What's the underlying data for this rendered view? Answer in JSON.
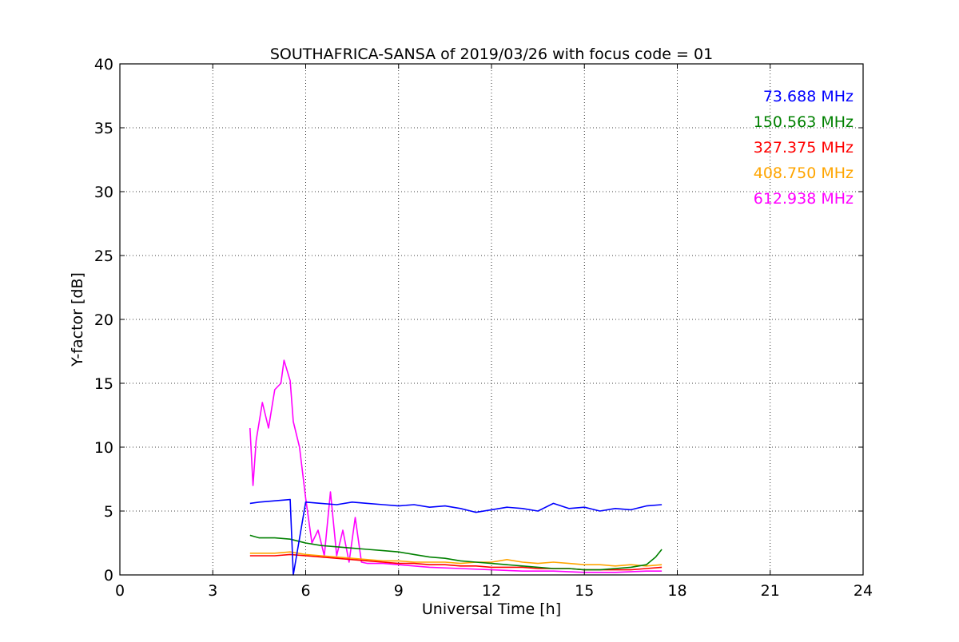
{
  "chart_data": {
    "type": "line",
    "title": "SOUTHAFRICA-SANSA of 2019/03/26 with focus code = 01",
    "xlabel": "Universal Time [h]",
    "ylabel": "Y-factor [dB]",
    "xlim": [
      0,
      24
    ],
    "ylim": [
      0,
      40
    ],
    "xticks": [
      0,
      3,
      6,
      9,
      12,
      15,
      18,
      21,
      24
    ],
    "yticks": [
      0,
      5,
      10,
      15,
      20,
      25,
      30,
      35,
      40
    ],
    "xtick_labels": [
      "0",
      "3",
      "6",
      "9",
      "12",
      "15",
      "18",
      "21",
      "24"
    ],
    "ytick_labels": [
      "0",
      "5",
      "10",
      "15",
      "20",
      "25",
      "30",
      "35",
      "40"
    ],
    "grid": true,
    "legend_position": "top-right",
    "series": [
      {
        "name": "73.688 MHz",
        "color": "#0000ff",
        "x": [
          4.2,
          4.5,
          5.0,
          5.5,
          5.6,
          6.0,
          6.5,
          7.0,
          7.5,
          8.0,
          8.5,
          9.0,
          9.5,
          10.0,
          10.5,
          11.0,
          11.5,
          12.0,
          12.5,
          13.0,
          13.5,
          14.0,
          14.5,
          15.0,
          15.5,
          16.0,
          16.5,
          17.0,
          17.5
        ],
        "y": [
          5.6,
          5.7,
          5.8,
          5.9,
          0.0,
          5.7,
          5.6,
          5.5,
          5.7,
          5.6,
          5.5,
          5.4,
          5.5,
          5.3,
          5.4,
          5.2,
          4.9,
          5.1,
          5.3,
          5.2,
          5.0,
          5.6,
          5.2,
          5.3,
          5.0,
          5.2,
          5.1,
          5.4,
          5.5
        ]
      },
      {
        "name": "150.563 MHz",
        "color": "#008000",
        "x": [
          4.2,
          4.5,
          5.0,
          5.5,
          6.0,
          6.5,
          7.0,
          7.5,
          8.0,
          8.5,
          9.0,
          9.5,
          10.0,
          10.5,
          11.0,
          11.5,
          12.0,
          12.5,
          13.0,
          13.5,
          14.0,
          14.5,
          15.0,
          15.5,
          16.0,
          16.5,
          17.0,
          17.3,
          17.5
        ],
        "y": [
          3.1,
          2.9,
          2.9,
          2.8,
          2.5,
          2.3,
          2.2,
          2.1,
          2.0,
          1.9,
          1.8,
          1.6,
          1.4,
          1.3,
          1.1,
          1.0,
          0.9,
          0.8,
          0.7,
          0.6,
          0.5,
          0.5,
          0.4,
          0.4,
          0.5,
          0.6,
          0.8,
          1.4,
          2.0
        ]
      },
      {
        "name": "327.375 MHz",
        "color": "#ff0000",
        "x": [
          4.2,
          4.5,
          5.0,
          5.5,
          6.0,
          6.5,
          7.0,
          7.5,
          8.0,
          8.5,
          9.0,
          9.5,
          10.0,
          10.5,
          11.0,
          11.5,
          12.0,
          12.5,
          13.0,
          13.5,
          14.0,
          14.5,
          15.0,
          15.5,
          16.0,
          16.5,
          17.0,
          17.5
        ],
        "y": [
          1.5,
          1.5,
          1.5,
          1.6,
          1.5,
          1.4,
          1.3,
          1.2,
          1.1,
          1.0,
          0.9,
          0.9,
          0.8,
          0.8,
          0.7,
          0.7,
          0.6,
          0.6,
          0.6,
          0.5,
          0.5,
          0.5,
          0.4,
          0.4,
          0.4,
          0.4,
          0.5,
          0.6
        ]
      },
      {
        "name": "408.750 MHz",
        "color": "#ffa500",
        "x": [
          4.2,
          4.5,
          5.0,
          5.5,
          6.0,
          6.5,
          7.0,
          7.5,
          8.0,
          8.5,
          9.0,
          9.5,
          10.0,
          10.5,
          11.0,
          11.5,
          12.0,
          12.5,
          13.0,
          13.5,
          14.0,
          14.5,
          15.0,
          15.5,
          16.0,
          16.5,
          17.0,
          17.5
        ],
        "y": [
          1.7,
          1.7,
          1.7,
          1.8,
          1.6,
          1.5,
          1.4,
          1.3,
          1.2,
          1.1,
          1.1,
          1.0,
          1.0,
          1.0,
          0.9,
          1.0,
          1.0,
          1.2,
          1.0,
          0.9,
          1.0,
          0.9,
          0.8,
          0.8,
          0.7,
          0.8,
          0.7,
          0.8
        ]
      },
      {
        "name": "612.938 MHz",
        "color": "#ff00ff",
        "x": [
          4.2,
          4.3,
          4.4,
          4.6,
          4.8,
          5.0,
          5.2,
          5.3,
          5.5,
          5.6,
          5.8,
          6.0,
          6.2,
          6.4,
          6.6,
          6.8,
          7.0,
          7.2,
          7.4,
          7.6,
          7.8,
          8.0,
          8.5,
          9.0,
          9.5,
          10.0,
          11.0,
          12.0,
          13.0,
          14.0,
          15.0,
          16.0,
          17.0,
          17.5
        ],
        "y": [
          11.5,
          7.0,
          10.5,
          13.5,
          11.5,
          14.5,
          15.0,
          16.8,
          15.2,
          12.0,
          10.0,
          6.0,
          2.5,
          3.5,
          1.5,
          6.5,
          1.5,
          3.5,
          1.0,
          4.5,
          1.0,
          0.9,
          0.9,
          0.8,
          0.7,
          0.6,
          0.5,
          0.4,
          0.3,
          0.3,
          0.2,
          0.2,
          0.3,
          0.3
        ]
      }
    ]
  }
}
